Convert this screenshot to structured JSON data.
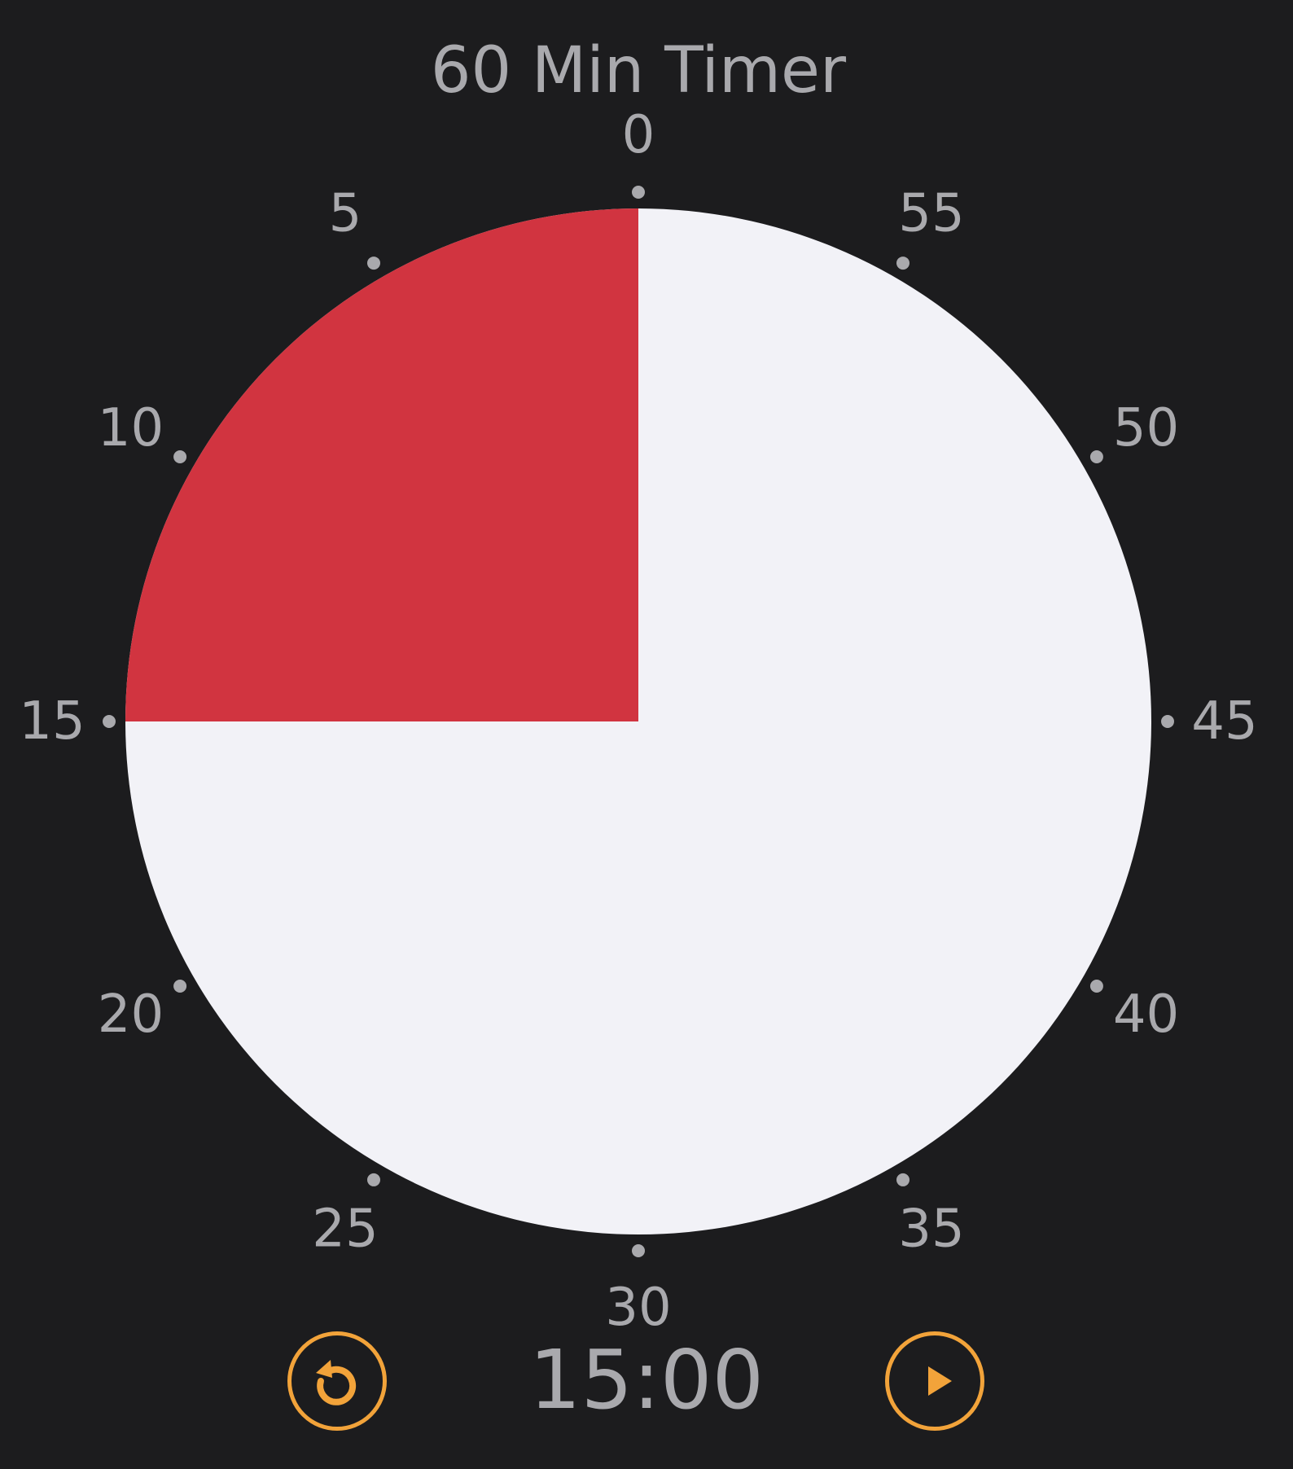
{
  "app": {
    "title": "60 Min Timer"
  },
  "dial": {
    "total_minutes": 60,
    "remaining_minutes": 15,
    "labels": [
      "0",
      "5",
      "10",
      "15",
      "20",
      "25",
      "30",
      "35",
      "40",
      "45",
      "50",
      "55"
    ],
    "colors": {
      "background": "#1c1c1e",
      "face": "#f2f2f7",
      "remaining": "#d13440",
      "label": "#a9a9ad",
      "accent": "#f2a33a"
    }
  },
  "controls": {
    "time_display": "15:00",
    "reset_icon": "reset-icon",
    "play_icon": "play-icon"
  }
}
